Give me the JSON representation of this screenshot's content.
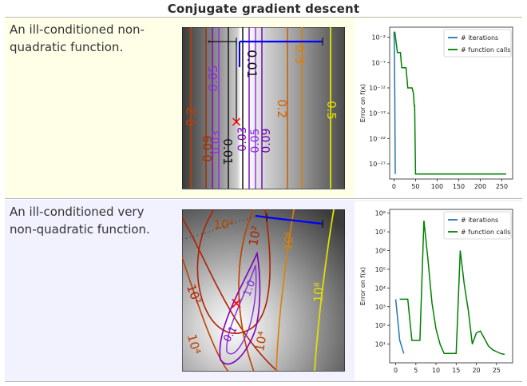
{
  "page_title": "Conjugate gradient descent",
  "row_colors": [
    "#ffffe8",
    "#f2f2ff"
  ],
  "rows": [
    {
      "description": "An ill-conditioned non-quadratic function.",
      "contour_labels": [
        "0.2",
        "0.05",
        "0.01",
        "0.3",
        "0.2",
        "0.5",
        "0.09",
        "0.01",
        "0.03",
        "0.03",
        "0.05",
        "0.09"
      ],
      "chart_data": {
        "type": "line",
        "ylabel": "Error on f(x)",
        "yscale": "log",
        "xlim": [
          -10,
          275
        ],
        "ylim_exp": [
          -30,
          0
        ],
        "x_ticks": [
          "0",
          "50",
          "100",
          "150",
          "200",
          "250"
        ],
        "y_ticks": [
          "10⁻²",
          "10⁻⁷",
          "10⁻¹²",
          "10⁻¹⁷",
          "10⁻²²",
          "10⁻²⁷"
        ],
        "legend": [
          "# iterations",
          "# function calls"
        ],
        "legend_position": "top-right",
        "series": [
          {
            "name": "# iterations",
            "color": "#1f77b4",
            "x": [
              0,
              1,
              2,
              3
            ],
            "y_exp": [
              -1,
              -4,
              -15,
              -29
            ]
          },
          {
            "name": "# function calls",
            "color": "#008000",
            "x": [
              0,
              2,
              5,
              8,
              12,
              15,
              18,
              20,
              24,
              28,
              32,
              35,
              38,
              42,
              45,
              47,
              48,
              50,
              52,
              100,
              150,
              200,
              260
            ],
            "y_exp": [
              -1,
              -1,
              -3,
              -5,
              -5,
              -5,
              -8,
              -8,
              -8,
              -8,
              -12,
              -12,
              -12,
              -12,
              -13,
              -15.5,
              -15.5,
              -29,
              -29,
              -29,
              -29,
              -29,
              -29
            ]
          }
        ]
      }
    },
    {
      "description": "An ill-conditioned very non-quadratic function.",
      "contour_labels": [
        "10⁴",
        "10²",
        "10⁶",
        "10²",
        "10⁸",
        "1.0",
        "0.1",
        "10⁴",
        "10⁴"
      ],
      "chart_data": {
        "type": "line",
        "ylabel": "Error on f(x)",
        "yscale": "log",
        "xlim": [
          -1.5,
          29
        ],
        "ylim_exp": [
          0,
          8.2
        ],
        "x_ticks": [
          "0",
          "5",
          "10",
          "15",
          "20",
          "25"
        ],
        "y_ticks": [
          "10⁸",
          "10⁷",
          "10⁶",
          "10⁵",
          "10⁴",
          "10³",
          "10²",
          "10¹"
        ],
        "legend": [
          "# iterations",
          "# function calls"
        ],
        "legend_position": "top-right",
        "series": [
          {
            "name": "# iterations",
            "color": "#1f77b4",
            "x": [
              0,
              1,
              2
            ],
            "y_exp": [
              3.4,
              1.2,
              0.5
            ]
          },
          {
            "name": "# function calls",
            "color": "#008000",
            "x": [
              1,
              2,
              3,
              4,
              5,
              6,
              7,
              8,
              9,
              10,
              11,
              12,
              13,
              14,
              15,
              16,
              17,
              18,
              19,
              20,
              21,
              22,
              23,
              24,
              25,
              26,
              27
            ],
            "y_exp": [
              3.4,
              3.4,
              3.4,
              1.2,
              1.2,
              1.2,
              7.6,
              5.5,
              3.2,
              1.8,
              1.0,
              0.5,
              0.5,
              0.5,
              0.5,
              6.0,
              4.2,
              2.8,
              1.0,
              1.6,
              1.7,
              1.3,
              0.9,
              0.7,
              0.6,
              0.5,
              0.45
            ]
          }
        ]
      }
    }
  ]
}
